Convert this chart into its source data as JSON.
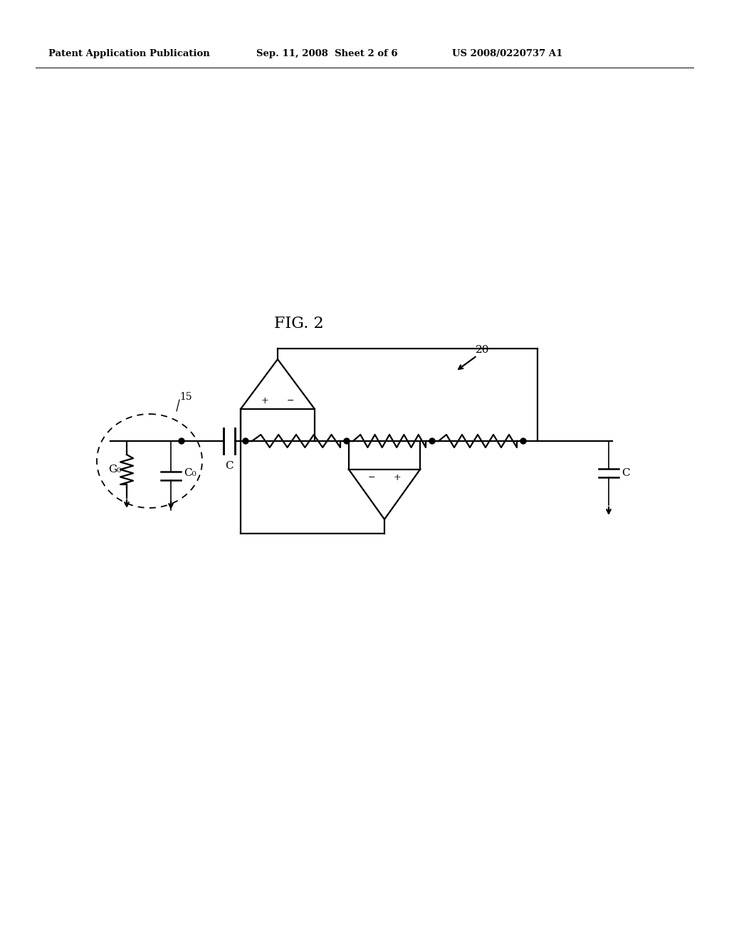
{
  "background_color": "#ffffff",
  "header_left": "Patent Application Publication",
  "header_center": "Sep. 11, 2008  Sheet 2 of 6",
  "header_right": "US 2008/0220737 A1",
  "fig_label": "FIG. 2",
  "label_20": "20",
  "label_15": "15",
  "label_G0": "G₀",
  "label_C0": "C₀",
  "label_C1": "C",
  "label_C2": "C",
  "line_color": "#000000",
  "line_width": 1.6
}
